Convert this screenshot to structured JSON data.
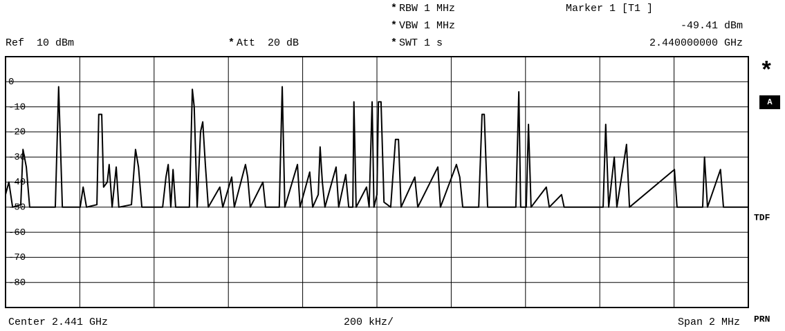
{
  "header": {
    "flag": "*",
    "ref": "Ref  10 dBm",
    "att": "Att  20 dB",
    "rbw": "RBW 1 MHz",
    "vbw": "VBW 1 MHz",
    "swt": "SWT 1 s",
    "marker": "Marker 1 [T1 ]",
    "marker_level": "-49.41 dBm",
    "marker_freq": "2.440000000 GHz"
  },
  "footer": {
    "center": "Center 2.441 GHz",
    "div": "200 kHz/",
    "span": "Span 2 MHz"
  },
  "side": {
    "star": "*",
    "trace": "A",
    "tdf": "TDF",
    "prn": "PRN"
  },
  "chart_data": {
    "type": "line",
    "color": "#000000",
    "grid": true,
    "xlim": [
      2.44,
      2.442
    ],
    "ylim": [
      -90,
      10
    ],
    "yticks": [
      0,
      -10,
      -20,
      -30,
      -40,
      -50,
      -60,
      -70,
      -80
    ],
    "x": [
      2.44,
      2.440009,
      2.440019,
      2.440041,
      2.440047,
      2.440056,
      2.440065,
      2.440134,
      2.440143,
      2.440153,
      2.440201,
      2.440209,
      2.440218,
      2.440246,
      2.440251,
      2.440259,
      2.440264,
      2.440274,
      2.440279,
      2.440287,
      2.440298,
      2.440305,
      2.440339,
      2.44035,
      2.440358,
      2.440367,
      2.440423,
      2.440432,
      2.440438,
      2.440445,
      2.440451,
      2.440458,
      2.440495,
      2.440503,
      2.440508,
      2.440516,
      2.440525,
      2.440531,
      2.440538,
      2.440546,
      2.440577,
      2.440585,
      2.440609,
      2.440616,
      2.440646,
      2.440652,
      2.440659,
      2.440693,
      2.4407,
      2.440737,
      2.440745,
      2.440752,
      2.440786,
      2.440793,
      2.440819,
      2.440827,
      2.440842,
      2.440847,
      2.440853,
      2.44086,
      2.44089,
      2.440897,
      2.440916,
      2.440924,
      2.440935,
      2.440938,
      2.440944,
      2.440972,
      2.440979,
      2.440987,
      2.440992,
      2.441,
      2.441004,
      2.441011,
      2.441019,
      2.441037,
      2.44105,
      2.441058,
      2.441065,
      2.441102,
      2.44111,
      2.441164,
      2.441171,
      2.441214,
      2.441223,
      2.441231,
      2.441274,
      2.441283,
      2.441289,
      2.441298,
      2.441374,
      2.441382,
      2.441387,
      2.441402,
      2.441408,
      2.441415,
      2.441456,
      2.441464,
      2.441497,
      2.441504,
      2.441609,
      2.441616,
      2.441624,
      2.441639,
      2.441646,
      2.441672,
      2.44168,
      2.441801,
      2.441808,
      2.441877,
      2.441882,
      2.44189,
      2.441925,
      2.441933,
      2.442
    ],
    "values": [
      -45,
      -40,
      -50,
      -49,
      -27,
      -34,
      -50,
      -50,
      -2,
      -50,
      -50,
      -42,
      -50,
      -49,
      -13,
      -13,
      -42,
      -40,
      -33,
      -50,
      -34,
      -50,
      -49,
      -27,
      -34,
      -50,
      -50,
      -38,
      -33,
      -50,
      -35,
      -50,
      -50,
      -3,
      -10,
      -50,
      -20,
      -16,
      -33,
      -50,
      -42,
      -50,
      -38,
      -50,
      -33,
      -38,
      -50,
      -40,
      -50,
      -50,
      -2,
      -50,
      -33,
      -50,
      -36,
      -50,
      -45,
      -26,
      -40,
      -50,
      -34,
      -50,
      -37,
      -50,
      -50,
      -8,
      -50,
      -42,
      -50,
      -8,
      -50,
      -45,
      -8,
      -8,
      -48,
      -50,
      -23,
      -23,
      -50,
      -38,
      -50,
      -34,
      -50,
      -33,
      -38,
      -50,
      -50,
      -13,
      -13,
      -50,
      -50,
      -4,
      -50,
      -50,
      -17,
      -50,
      -42,
      -50,
      -45,
      -50,
      -50,
      -17,
      -50,
      -30,
      -50,
      -25,
      -50,
      -35,
      -50,
      -50,
      -30,
      -50,
      -35,
      -50,
      -50
    ]
  }
}
